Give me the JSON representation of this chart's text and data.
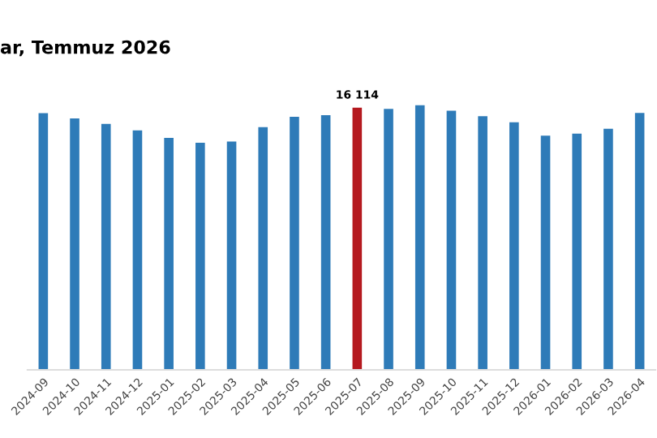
{
  "chart_data": {
    "type": "bar",
    "title": "ar, Temmuz 2026",
    "categories": [
      "2024-09",
      "2024-10",
      "2024-11",
      "2024-12",
      "2025-01",
      "2025-02",
      "2025-03",
      "2025-04",
      "2025-05",
      "2025-06",
      "2025-07",
      "2025-08",
      "2025-09",
      "2025-10",
      "2025-11",
      "2025-12",
      "2026-01",
      "2026-02",
      "2026-03",
      "2026-04"
    ],
    "values": [
      15780,
      15450,
      15120,
      14720,
      14250,
      13960,
      14030,
      14920,
      15550,
      15650,
      16114,
      16040,
      16280,
      15920,
      15590,
      15220,
      14390,
      14520,
      14820,
      15790
    ],
    "colors": [
      "#2e7bb8",
      "#2e7bb8",
      "#2e7bb8",
      "#2e7bb8",
      "#2e7bb8",
      "#2e7bb8",
      "#2e7bb8",
      "#2e7bb8",
      "#2e7bb8",
      "#2e7bb8",
      "#b5191f",
      "#2e7bb8",
      "#2e7bb8",
      "#2e7bb8",
      "#2e7bb8",
      "#2e7bb8",
      "#2e7bb8",
      "#2e7bb8",
      "#2e7bb8",
      "#2e7bb8"
    ],
    "value_labels": [
      null,
      null,
      null,
      null,
      null,
      null,
      null,
      null,
      null,
      null,
      "16 114",
      null,
      null,
      null,
      null,
      null,
      null,
      null,
      null,
      null
    ],
    "grid": false,
    "legend": false
  }
}
